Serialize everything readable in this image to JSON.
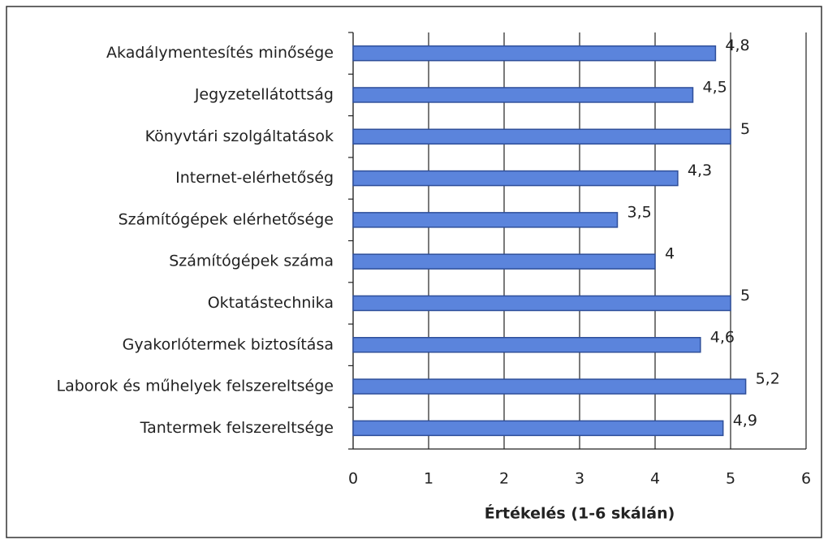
{
  "chart_data": {
    "type": "bar",
    "orientation": "horizontal",
    "x_label": "Értékelés (1-6 skálán)",
    "categories": [
      "Akadálymentesítés minősége",
      "Jegyzetellátottság",
      "Könyvtári szolgáltatások",
      "Internet-elérhetőség",
      "Számítógépek elérhetősége",
      "Számítógépek száma",
      "Oktatástechnika",
      "Gyakorlótermek biztosítása",
      "Laborok és műhelyek felszereltsége",
      "Tantermek felszereltsége"
    ],
    "values": [
      4.8,
      4.5,
      5,
      4.3,
      3.5,
      4,
      5,
      4.6,
      5.2,
      4.9
    ],
    "value_labels": [
      "4,8",
      "4,5",
      "5",
      "4,3",
      "3,5",
      "4",
      "5",
      "4,6",
      "5,2",
      "4,9"
    ],
    "color": "#5b84dc",
    "xlim": [
      0,
      6
    ],
    "xticks": [
      0,
      1,
      2,
      3,
      4,
      5,
      6
    ],
    "grid": true
  }
}
